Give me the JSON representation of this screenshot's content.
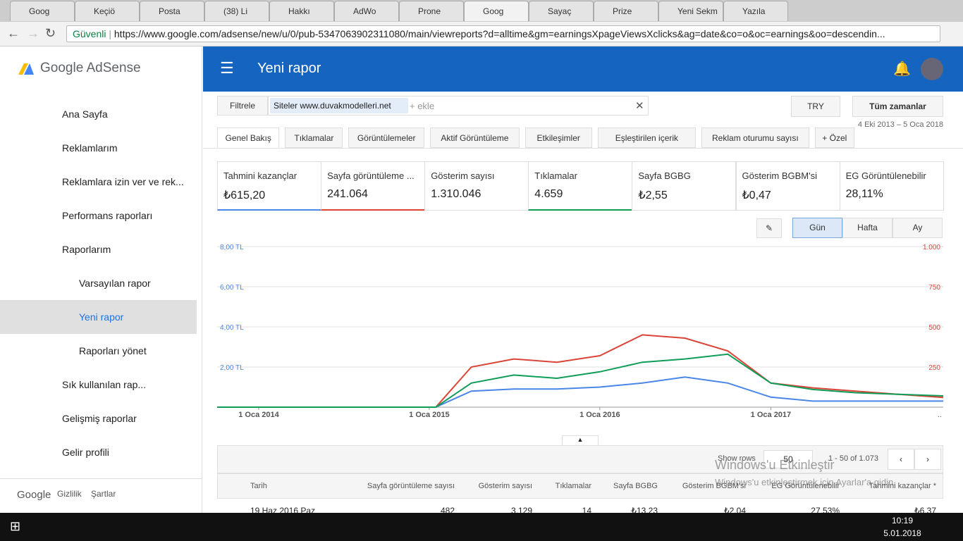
{
  "browser": {
    "tabs": [
      "Goog",
      "Keçiö",
      "Posta",
      "(38) Li",
      "Hakkı",
      "AdWo",
      "Prone",
      "Goog",
      "Sayaç",
      "Prize",
      "Yeni Sekm",
      "Yazıla"
    ],
    "active_tab": 7,
    "secure": "Güvenli",
    "url": "https://www.google.com/adsense/new/u/0/pub-5347063902311080/main/viewreports?d=alltime&gm=earningsXpageViewsXclicks&ag=date&co=o&oc=earnings&oo=descendin..."
  },
  "sidebar": {
    "logo": "Google AdSense",
    "items": [
      "Ana Sayfa",
      "Reklamlarım",
      "Reklamlara izin ver ve rek...",
      "Performans raporları",
      "Raporlarım",
      "Varsayılan rapor",
      "Yeni rapor",
      "Raporları yönet",
      "Sık kullanılan rap...",
      "Gelişmiş raporlar",
      "Gelir profili"
    ],
    "selected": 6,
    "footer": [
      "Google",
      "Gizlilik",
      "Şartlar"
    ]
  },
  "header": {
    "title": "Yeni rapor"
  },
  "filters": {
    "label": "Filtrele",
    "chip": "Siteler www.duvakmodelleri.net",
    "placeholder": "+ ekle",
    "currency": "TRY",
    "range": "Tüm zamanlar",
    "dates": "4 Eki 2013 – 5 Oca 2018"
  },
  "report_tabs": [
    "Genel Bakış",
    "Tıklamalar",
    "Görüntülemeler",
    "Aktif Görüntüleme",
    "Etkileşimler",
    "Eşleştirilen içerik",
    "Reklam oturumu sayısı",
    "+ Özel"
  ],
  "metrics": [
    {
      "label": "Tahmini kazançlar",
      "value": "₺615,20",
      "color": "#4a86e8"
    },
    {
      "label": "Sayfa görüntüleme ...",
      "value": "241.064",
      "color": "#db4437"
    },
    {
      "label": "Gösterim sayısı",
      "value": "1.310.046"
    },
    {
      "label": "Tıklamalar",
      "value": "4.659",
      "color": "#0f9d58"
    },
    {
      "label": "Sayfa BGBG",
      "value": "₺2,55"
    },
    {
      "label": "Gösterim BGBM'si",
      "value": "₺0,47"
    },
    {
      "label": "EG Görüntülenebilir",
      "value": "28,11%"
    }
  ],
  "granularity": [
    "Gün",
    "Hafta",
    "Ay"
  ],
  "chart_data": {
    "type": "line",
    "x": [
      "2013-10-04",
      "2014-01-01",
      "2014-04-01",
      "2014-07-01",
      "2014-10-01",
      "2015-01-15",
      "2015-04-01",
      "2015-07-01",
      "2015-10-01",
      "2016-01-01",
      "2016-04-01",
      "2016-07-01",
      "2016-10-01",
      "2017-01-01",
      "2017-04-01",
      "2017-07-01",
      "2017-10-01",
      "2018-01-05"
    ],
    "series": [
      {
        "name": "Tahmini kazançlar",
        "color": "#4a86e8",
        "values": [
          0,
          0,
          0,
          0,
          0,
          0,
          0.8,
          0.9,
          0.9,
          1.0,
          1.2,
          1.5,
          1.2,
          0.5,
          0.3,
          0.3,
          0.3,
          0.3
        ]
      },
      {
        "name": "Sayfa görüntüleme",
        "color": "#db4437",
        "axis": "y2",
        "values": [
          0,
          0,
          0,
          0,
          0,
          0,
          250,
          300,
          280,
          320,
          450,
          430,
          350,
          150,
          120,
          100,
          80,
          60
        ]
      },
      {
        "name": "Tıklamalar",
        "color": "#0f9d58",
        "axis": "y2",
        "values": [
          0,
          0,
          0,
          0,
          0,
          0,
          150,
          200,
          180,
          220,
          280,
          300,
          330,
          150,
          110,
          90,
          80,
          70
        ]
      }
    ],
    "xlim": [
      "2013-10-04",
      "2018-01-05"
    ],
    "xticks": [
      {
        "value": "2014-01-01",
        "label": "1 Oca 2014"
      },
      {
        "value": "2015-01-01",
        "label": "1 Oca 2015"
      },
      {
        "value": "2016-01-01",
        "label": "1 Oca 2016"
      },
      {
        "value": "2017-01-01",
        "label": "1 Oca 2017"
      }
    ],
    "x_more": "..",
    "ylim": [
      0,
      8
    ],
    "yticks": [
      {
        "value": 2,
        "label": "2,00 TL"
      },
      {
        "value": 4,
        "label": "4,00 TL"
      },
      {
        "value": 6,
        "label": "6,00 TL"
      },
      {
        "value": 8,
        "label": "8,00 TL"
      }
    ],
    "y2lim": [
      0,
      1000
    ],
    "y2ticks": [
      250,
      500,
      750,
      {
        "value": 1000,
        "label": "1.000"
      }
    ],
    "grid": true
  },
  "table": {
    "show_rows": "Show rows",
    "rows_per_page": "50",
    "range": "1 - 50 of 1.073",
    "headers": [
      "Tarih",
      "Sayfa görüntüleme sayısı",
      "Gösterim sayısı",
      "Tıklamalar",
      "Sayfa BGBG",
      "Gösterim BGBM'si",
      "EG Görüntülenebilir",
      "Tahmini kazançlar *"
    ],
    "rows": [
      [
        "19 Haz 2016 Paz",
        "482",
        "3.129",
        "14",
        "₺13,23",
        "₺2,04",
        "27,53%",
        "₺6,37"
      ]
    ]
  },
  "watermark": {
    "title": "Windows'u Etkinleştir",
    "text": "Windows'u etkinleştirmek için Ayarlar'a gidin."
  },
  "taskbar": {
    "time": "10:19",
    "date": "5.01.2018"
  }
}
